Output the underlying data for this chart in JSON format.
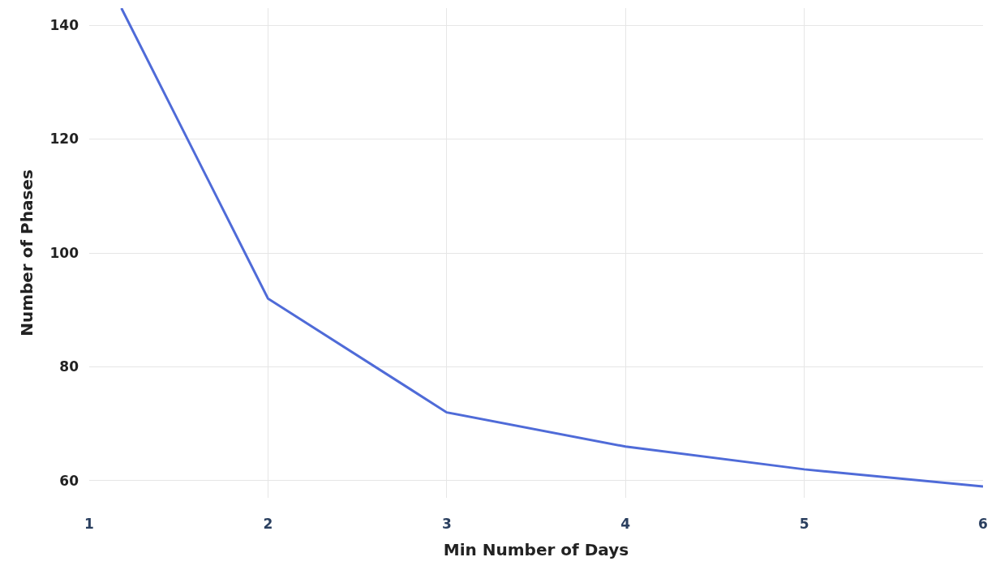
{
  "chart_data": {
    "type": "line",
    "xlabel": "Min Number of Days",
    "ylabel": "Number of Phases",
    "series": [
      {
        "color": "#4f6bd8",
        "x": [
          1.18,
          2,
          3,
          4,
          5,
          6
        ],
        "values": [
          143,
          92,
          72,
          66,
          62,
          59
        ]
      }
    ],
    "xlim": [
      1,
      6
    ],
    "xticks": [
      1,
      2,
      3,
      4,
      5,
      6
    ],
    "ylim": [
      57,
      143
    ],
    "yticks": [
      60,
      80,
      100,
      120,
      140
    ],
    "grid": true,
    "legend": false,
    "marker": "none",
    "line_style": "solid"
  }
}
